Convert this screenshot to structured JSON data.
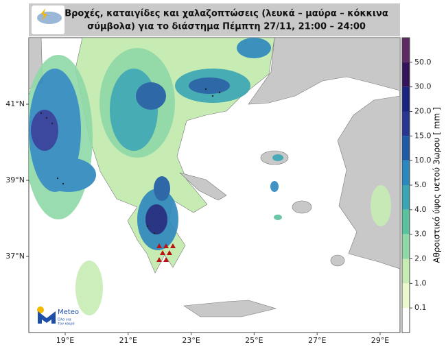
{
  "header": {
    "title_line1": "Βροχές, καταιγίδες και χαλαζοπτώσεις (λευκά – μαύρα – κόκκινα",
    "title_line2": "σύμβολα) για το διάστημα  Πέμπτη 27/11, 21:00 – 24:00"
  },
  "map": {
    "lon_ticks": [
      "19°E",
      "21°E",
      "23°E",
      "25°E",
      "27°E",
      "29°E"
    ],
    "lat_ticks": [
      "41°N",
      "39°N",
      "37°N"
    ]
  },
  "colorbar": {
    "label": "Αθροιστικό ύψος υετού 3ωρου [ mm ]",
    "ticks": [
      "50.0",
      "30.0",
      "20.0",
      "15.0",
      "10.0",
      "5.0",
      "4.0",
      "3.0",
      "2.0",
      "1.0",
      "0.1"
    ],
    "colors": [
      "#5e2a63",
      "#34135a",
      "#1a237e",
      "#283593",
      "#1e5aa6",
      "#2c87bd",
      "#3aa6b4",
      "#5cc19d",
      "#8fd9a8",
      "#c6ecb4",
      "#eef8cf",
      "#ffffff"
    ]
  },
  "logo": {
    "name": "Meteo",
    "slogan_line1": "Όλα για",
    "slogan_line2": "τον καιρό"
  }
}
